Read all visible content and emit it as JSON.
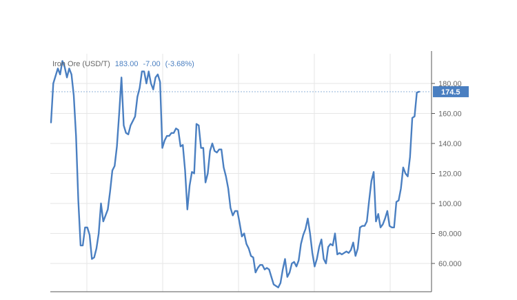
{
  "legend": {
    "instrument": "Iron Ore (USD/T)",
    "price": "183.00",
    "change": "-7.00",
    "change_pct": "(-3.68%)"
  },
  "current_price_label": "174.5",
  "colors": {
    "line": "#4a7fc1",
    "label_bg": "#4a7fc1",
    "grid": "#e6e6e6",
    "axis": "#555555",
    "tick_text": "#666666",
    "legend_text": "#666666",
    "legend_value": "#4a7fc1",
    "price_line": "#8fb0da"
  },
  "chart_data": {
    "type": "line",
    "title": "",
    "xlabel": "",
    "ylabel": "",
    "ylim": [
      42,
      200
    ],
    "yticks": [
      60,
      80,
      100,
      120,
      140,
      160,
      180
    ],
    "ytick_labels": [
      "60.000",
      "80.000",
      "100.00",
      "120.00",
      "140.00",
      "160.00",
      "180.00"
    ],
    "grid": true,
    "current_price": 174.5,
    "series": [
      {
        "values": [
          154,
          180,
          185,
          190,
          186,
          195,
          191,
          184,
          190,
          186,
          172,
          145,
          102,
          72,
          72,
          84,
          84,
          79,
          63,
          64,
          70,
          80,
          100,
          88,
          92,
          96,
          108,
          122,
          125,
          138,
          160,
          184,
          152,
          147,
          146,
          152,
          155,
          158,
          171,
          177,
          188,
          188,
          180,
          188,
          180,
          176,
          184,
          186,
          181,
          137,
          142,
          145,
          145,
          147,
          147,
          150,
          149,
          138,
          139,
          122,
          96,
          112,
          121,
          120,
          153,
          152,
          137,
          137,
          114,
          120,
          135,
          140,
          135,
          134,
          136,
          136,
          124,
          118,
          110,
          97,
          92,
          95,
          95,
          87,
          78,
          80,
          73,
          70,
          65,
          64,
          54,
          57,
          59,
          59,
          56,
          57,
          56,
          51,
          46,
          45,
          44,
          47,
          56,
          63,
          51,
          54,
          60,
          61,
          58,
          62,
          73,
          79,
          83,
          90,
          80,
          67,
          58,
          63,
          71,
          76,
          63,
          60,
          71,
          73,
          72,
          80,
          66,
          67,
          66,
          67,
          68,
          67,
          69,
          74,
          65,
          70,
          84,
          85,
          85,
          88,
          102,
          115,
          121,
          88,
          93,
          84,
          86,
          90,
          95,
          85,
          84,
          84,
          101,
          102,
          110,
          124,
          120,
          118,
          131,
          157,
          158,
          174,
          174.5
        ]
      }
    ]
  }
}
